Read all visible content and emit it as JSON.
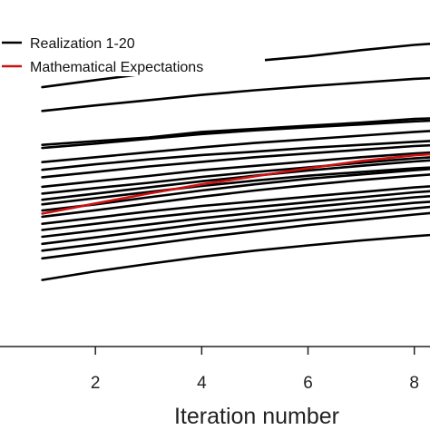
{
  "chart_data": {
    "type": "line",
    "xlabel": "Iteration number",
    "ylabel": "",
    "xlim": [
      0,
      8.5
    ],
    "ylim": [
      0,
      1
    ],
    "x_ticks": [
      2,
      4,
      6,
      8
    ],
    "legend_position": "top-left",
    "legend": [
      {
        "label": "Realization 1-20",
        "color": "#000000"
      },
      {
        "label": "Mathematical Expectations",
        "color": "#cc1111"
      }
    ],
    "x": [
      1,
      2,
      3,
      4,
      5,
      6,
      7,
      8,
      8.5
    ],
    "series": [
      {
        "color": "#000000",
        "values": [
          0.835,
          0.858,
          0.88,
          0.9,
          0.92,
          0.935,
          0.955,
          0.972,
          0.978
        ]
      },
      {
        "color": "#000000",
        "values": [
          0.758,
          0.776,
          0.793,
          0.81,
          0.825,
          0.838,
          0.85,
          0.862,
          0.866
        ]
      },
      {
        "color": "#000000",
        "values": [
          0.648,
          0.66,
          0.672,
          0.69,
          0.7,
          0.71,
          0.72,
          0.732,
          0.735
        ]
      },
      {
        "color": "#000000",
        "values": [
          0.638,
          0.652,
          0.668,
          0.683,
          0.695,
          0.705,
          0.714,
          0.724,
          0.728
        ]
      },
      {
        "color": "#000000",
        "values": [
          0.592,
          0.608,
          0.624,
          0.64,
          0.654,
          0.666,
          0.678,
          0.69,
          0.695
        ]
      },
      {
        "color": "#000000",
        "values": [
          0.567,
          0.585,
          0.601,
          0.615,
          0.626,
          0.638,
          0.648,
          0.658,
          0.662
        ]
      },
      {
        "color": "#000000",
        "values": [
          0.543,
          0.56,
          0.578,
          0.593,
          0.608,
          0.62,
          0.632,
          0.644,
          0.648
        ]
      },
      {
        "color": "#000000",
        "values": [
          0.512,
          0.53,
          0.547,
          0.566,
          0.58,
          0.594,
          0.608,
          0.62,
          0.625
        ]
      },
      {
        "color": "#000000",
        "values": [
          0.49,
          0.508,
          0.525,
          0.544,
          0.56,
          0.575,
          0.59,
          0.604,
          0.61
        ]
      },
      {
        "color": "#000000",
        "values": [
          0.47,
          0.49,
          0.51,
          0.53,
          0.548,
          0.565,
          0.58,
          0.594,
          0.6
        ]
      },
      {
        "color": "#000000",
        "values": [
          0.455,
          0.475,
          0.495,
          0.515,
          0.532,
          0.548,
          0.56,
          0.572,
          0.576
        ]
      },
      {
        "color": "#000000",
        "values": [
          0.435,
          0.455,
          0.478,
          0.5,
          0.52,
          0.538,
          0.552,
          0.566,
          0.572
        ]
      },
      {
        "color": "#000000",
        "values": [
          0.415,
          0.436,
          0.458,
          0.48,
          0.5,
          0.518,
          0.534,
          0.548,
          0.554
        ]
      },
      {
        "color": "#000000",
        "values": [
          0.392,
          0.412,
          0.432,
          0.45,
          0.465,
          0.48,
          0.495,
          0.51,
          0.516
        ]
      },
      {
        "color": "#000000",
        "values": [
          0.372,
          0.392,
          0.412,
          0.43,
          0.446,
          0.462,
          0.478,
          0.494,
          0.5
        ]
      },
      {
        "color": "#000000",
        "values": [
          0.35,
          0.37,
          0.39,
          0.41,
          0.428,
          0.446,
          0.462,
          0.478,
          0.484
        ]
      },
      {
        "color": "#000000",
        "values": [
          0.327,
          0.348,
          0.37,
          0.392,
          0.41,
          0.428,
          0.444,
          0.46,
          0.466
        ]
      },
      {
        "color": "#000000",
        "values": [
          0.305,
          0.326,
          0.348,
          0.37,
          0.39,
          0.408,
          0.425,
          0.442,
          0.45
        ]
      },
      {
        "color": "#000000",
        "values": [
          0.28,
          0.302,
          0.325,
          0.348,
          0.368,
          0.388,
          0.405,
          0.422,
          0.43
        ]
      },
      {
        "color": "#000000",
        "values": [
          0.21,
          0.238,
          0.262,
          0.285,
          0.305,
          0.322,
          0.338,
          0.352,
          0.358
        ]
      },
      {
        "color": "#cc1111",
        "values": [
          0.425,
          0.458,
          0.49,
          0.52,
          0.546,
          0.572,
          0.596,
          0.614,
          0.62
        ]
      }
    ]
  }
}
